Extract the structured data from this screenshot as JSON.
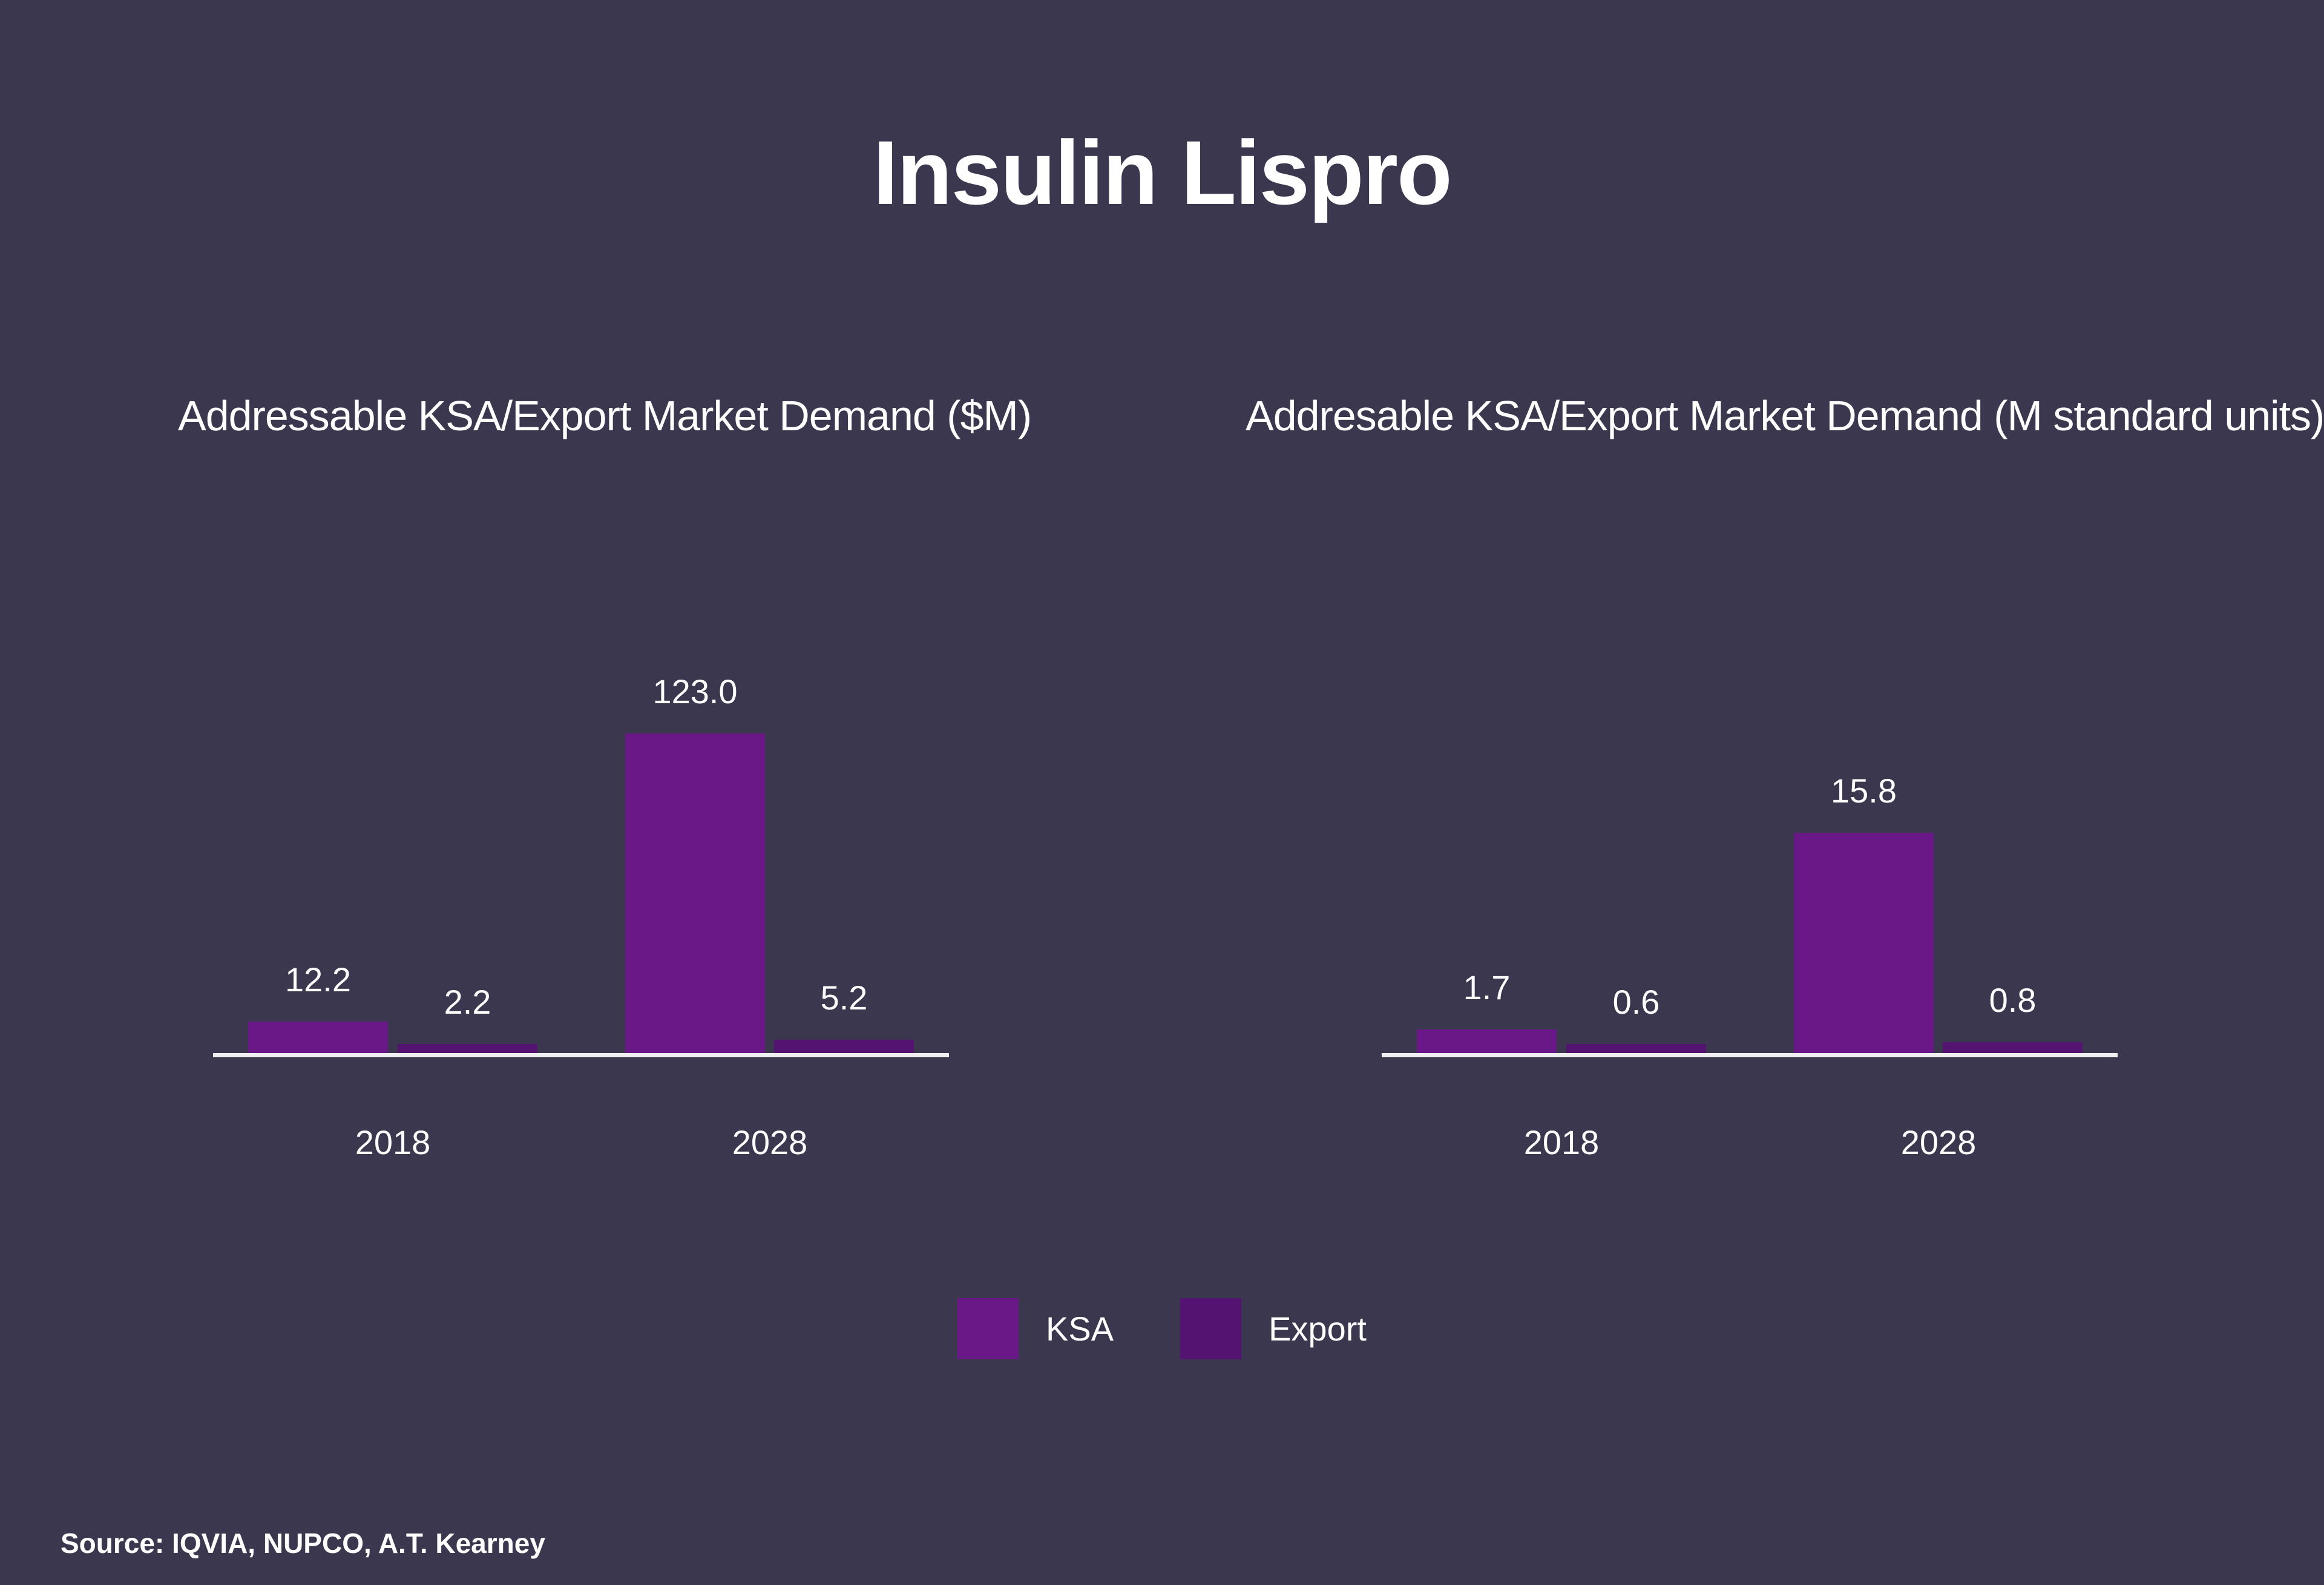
{
  "slide": {
    "title": "Insulin Lispro",
    "source": "Source: IQVIA, NUPCO, A.T. Kearney"
  },
  "colors": {
    "background": "#3a374f",
    "ksa": "#6a1788",
    "export": "#541370",
    "axis_line": "#f0f0f2",
    "text": "#ffffff"
  },
  "legend": {
    "items": [
      {
        "label": "KSA",
        "color": "#6a1788"
      },
      {
        "label": "Export",
        "color": "#541370"
      }
    ]
  },
  "chart_data": [
    {
      "type": "bar",
      "title": "Addressable KSA/Export Market Demand ($M)",
      "unit": "$M",
      "categories": [
        "2018",
        "2028"
      ],
      "series": [
        {
          "name": "KSA",
          "color": "#6a1788",
          "values": [
            12.2,
            123.0
          ],
          "labels": [
            "12.2",
            "123.0"
          ]
        },
        {
          "name": "Export",
          "color": "#541370",
          "values": [
            2.2,
            5.2
          ],
          "labels": [
            "2.2",
            "5.2"
          ]
        }
      ],
      "ylim": [
        0,
        123.0
      ],
      "grid": false,
      "x_axis_line": true,
      "value_labels": "above-bars",
      "legend_position": "bottom-center-shared"
    },
    {
      "type": "bar",
      "title": "Addresable KSA/Export Market Demand (M standard units)",
      "unit": "M standard units",
      "categories": [
        "2018",
        "2028"
      ],
      "series": [
        {
          "name": "KSA",
          "color": "#6a1788",
          "values": [
            1.7,
            15.8
          ],
          "labels": [
            "1.7",
            "15.8"
          ]
        },
        {
          "name": "Export",
          "color": "#541370",
          "values": [
            0.6,
            0.8
          ],
          "labels": [
            "0.6",
            "0.8"
          ]
        }
      ],
      "ylim": [
        0,
        15.8
      ],
      "grid": false,
      "x_axis_line": true,
      "value_labels": "above-bars",
      "legend_position": "bottom-center-shared"
    }
  ]
}
